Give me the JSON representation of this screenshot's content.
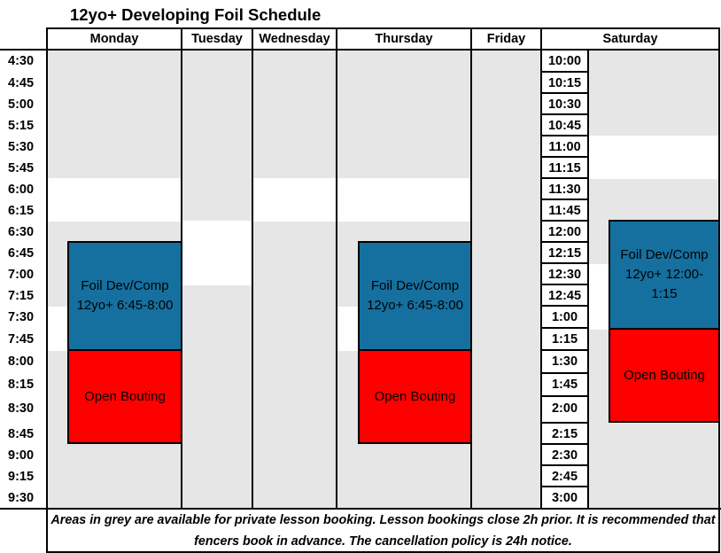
{
  "title": "12yo+ Developing Foil Schedule",
  "days": [
    "Monday",
    "Tuesday",
    "Wednesday",
    "Thursday",
    "Friday",
    "Saturday"
  ],
  "weekday_times": [
    "4:30",
    "4:45",
    "5:00",
    "5:15",
    "5:30",
    "5:45",
    "6:00",
    "6:15",
    "6:30",
    "6:45",
    "7:00",
    "7:15",
    "7:30",
    "7:45",
    "8:00",
    "8:15",
    "8:30",
    "8:45",
    "9:00",
    "9:15",
    "9:30"
  ],
  "saturday_times": [
    "10:00",
    "10:15",
    "10:30",
    "10:45",
    "11:00",
    "11:15",
    "11:30",
    "11:45",
    "12:00",
    "12:15",
    "12:30",
    "12:45",
    "1:00",
    "1:15",
    "1:30",
    "1:45",
    "2:00",
    "2:15",
    "2:30",
    "2:45",
    "3:00"
  ],
  "blocks": {
    "monday_class": "Foil Dev/Comp 12yo+ 6:45-8:00",
    "monday_bouting": "Open Bouting",
    "thursday_class": "Foil Dev/Comp 12yo+ 6:45-8:00",
    "thursday_bouting": "Open Bouting",
    "saturday_class": "Foil Dev/Comp 12yo+ 12:00-1:15",
    "saturday_bouting": "Open Bouting"
  },
  "footer": "Areas in grey are available for private lesson booking. Lesson bookings close 2h prior. It is recommended that fencers book in advance. The cancellation policy is 24h notice.",
  "colors": {
    "grey": "#e6e6e6",
    "blue": "#1570a0",
    "red": "#ff0000"
  }
}
